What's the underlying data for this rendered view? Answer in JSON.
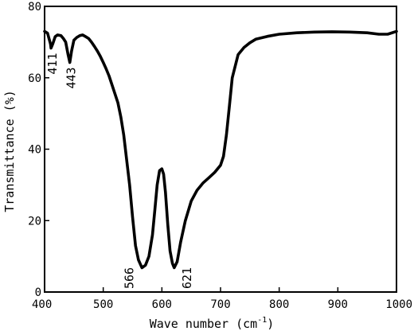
{
  "chart_data": {
    "type": "line",
    "title": "",
    "xlabel": "Wave number (cm",
    "xlabel_sup": "-1",
    "xlabel_end": ")",
    "ylabel": "Transmittance (%)",
    "xlim": [
      400,
      1000
    ],
    "ylim": [
      0,
      80
    ],
    "x_ticks": [
      "400",
      "500",
      "600",
      "700",
      "800",
      "900",
      "1000"
    ],
    "y_ticks": [
      "0",
      "20",
      "40",
      "60",
      "80"
    ],
    "grid": false,
    "legend": "none",
    "line_color": "#000000",
    "series": [
      {
        "x": [
          400,
          405,
          410,
          411,
          414,
          418,
          422,
          428,
          432,
          436,
          440,
          443,
          446,
          450,
          455,
          460,
          465,
          470,
          475,
          480,
          485,
          490,
          495,
          500,
          505,
          510,
          515,
          520,
          525,
          530,
          535,
          540,
          545,
          550,
          555,
          560,
          566,
          572,
          578,
          584,
          588,
          592,
          596,
          600,
          603,
          606,
          610,
          614,
          618,
          621,
          626,
          632,
          640,
          650,
          660,
          670,
          680,
          690,
          695,
          700,
          705,
          710,
          715,
          720,
          730,
          740,
          750,
          760,
          780,
          800,
          830,
          860,
          890,
          920,
          950,
          970,
          985,
          1000
        ],
        "y": [
          73,
          72.5,
          69.5,
          68.3,
          69.5,
          71.5,
          72.0,
          71.8,
          71.0,
          70.0,
          66.5,
          64.3,
          67.5,
          70.5,
          71.3,
          71.8,
          72.0,
          71.5,
          71.0,
          70.0,
          68.8,
          67.5,
          66.0,
          64.3,
          62.5,
          60.5,
          58.0,
          55.5,
          53.0,
          49.0,
          44.0,
          37.0,
          30.0,
          21.0,
          13.0,
          9.0,
          6.8,
          7.5,
          10.0,
          16.0,
          23.0,
          30.0,
          34.0,
          34.5,
          33.0,
          28.0,
          19.0,
          11.5,
          8.0,
          6.8,
          8.5,
          14.0,
          20.0,
          25.5,
          28.5,
          30.5,
          32.0,
          33.5,
          34.5,
          35.5,
          38.0,
          44.0,
          52.0,
          60.0,
          66.5,
          68.5,
          69.8,
          70.8,
          71.6,
          72.2,
          72.6,
          72.8,
          72.9,
          72.8,
          72.6,
          72.2,
          72.2,
          73.0
        ]
      }
    ],
    "annotations": [
      {
        "text": "411",
        "x": 411,
        "y": 68.3
      },
      {
        "text": "443",
        "x": 443,
        "y": 64.3
      },
      {
        "text": "566",
        "x": 566,
        "y": 6.8
      },
      {
        "text": "621",
        "x": 621,
        "y": 6.8
      }
    ]
  }
}
